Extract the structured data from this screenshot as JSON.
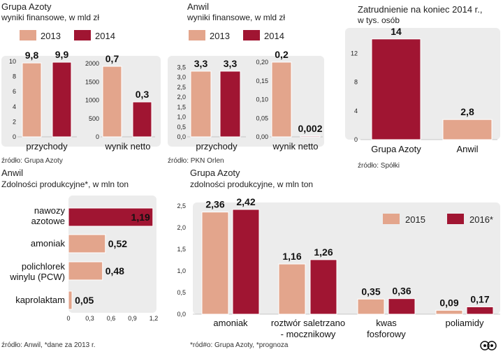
{
  "colors": {
    "c2013": "#e3a58c",
    "c2014": "#a01532",
    "panel": "#ececec"
  },
  "panel1": {
    "title": "Grupa Azoty",
    "subtitle": "wyniki finansowe, w mld zł",
    "legend": [
      "2013",
      "2014"
    ],
    "source": "źródło: Grupa Azoty"
  },
  "panel2": {
    "title": "Anwil",
    "subtitle": "wyniki finansowe, w mld zł",
    "legend": [
      "2013",
      "2014"
    ],
    "source": "źródło: PKN Orlen"
  },
  "panel3": {
    "title": "Zatrudnienie na koniec 2014 r.,",
    "subtitle": "w tys. osób",
    "source": "źródło: Spółki"
  },
  "panel4": {
    "title": "Anwil",
    "subtitle": "Zdolności produkcyjne*, w mln ton",
    "source": "źródło: Anwil, *dane za 2013 r."
  },
  "panel5": {
    "title": "Grupa Azoty",
    "subtitle": "zdolności produkcyjne, w mln ton",
    "legend": [
      "2015",
      "2016*"
    ],
    "source": "*ród#o: Grupa Azoty, *prognoza"
  },
  "logo": "PAP",
  "chart_data": [
    {
      "id": "ga_przychody",
      "type": "bar",
      "series": [
        "2013",
        "2014"
      ],
      "values": [
        9.8,
        9.9
      ],
      "labels": [
        "9,8",
        "9,9"
      ],
      "ylim": [
        0,
        10
      ],
      "yticks": [
        "0",
        "2",
        "4",
        "6",
        "8",
        "10"
      ],
      "xlabel": "przychody"
    },
    {
      "id": "ga_wynik",
      "type": "bar",
      "series": [
        "2013",
        "2014"
      ],
      "values": [
        0.7,
        0.3
      ],
      "labels": [
        "0,7",
        "0,3"
      ],
      "ylim": [
        0,
        2000
      ],
      "yticks": [
        "0",
        "500",
        "1000",
        "1500",
        "2000"
      ],
      "xlabel": "wynik netto"
    },
    {
      "id": "an_przychody",
      "type": "bar",
      "series": [
        "2013",
        "2014"
      ],
      "values": [
        3.3,
        3.3
      ],
      "labels": [
        "3,3",
        "3,3"
      ],
      "ylim": [
        0,
        3.5
      ],
      "yticks": [
        "0,0",
        "0,5",
        "1,0",
        "1,5",
        "2,0",
        "2,5",
        "3,0",
        "3,5"
      ],
      "xlabel": "przychody"
    },
    {
      "id": "an_wynik",
      "type": "bar",
      "series": [
        "2013",
        "2014"
      ],
      "values": [
        0.2,
        0.002
      ],
      "labels": [
        "0,2",
        "0,002"
      ],
      "ylim": [
        0,
        0.2
      ],
      "yticks": [
        "0,00",
        "0,05",
        "0,10",
        "0,15",
        "0,20"
      ],
      "xlabel": "wynik netto"
    },
    {
      "id": "zatrudnienie",
      "type": "bar",
      "categories": [
        "Grupa Azoty",
        "Anwil"
      ],
      "values": [
        14,
        2.8
      ],
      "labels": [
        "14",
        "2,8"
      ],
      "ylim": [
        0,
        14
      ],
      "yticks": [
        "0",
        "4",
        "8",
        "12"
      ]
    },
    {
      "id": "anwil_zdolnosci",
      "type": "bar",
      "orientation": "horizontal",
      "categories": [
        "nawozy azotowe",
        "amoniak",
        "polichlorek winylu (PCW)",
        "kaprolaktam"
      ],
      "values": [
        1.19,
        0.52,
        0.48,
        0.05
      ],
      "labels": [
        "1,19",
        "0,52",
        "0,48",
        "0,05"
      ],
      "xlim": [
        0,
        1.2
      ],
      "xticks": [
        "0",
        "0,3",
        "0,6",
        "0,9",
        "1,2"
      ]
    },
    {
      "id": "ga_zdolnosci",
      "type": "bar",
      "categories": [
        "amoniak",
        "roztwór saletrzano - mocznikowy",
        "kwas fosforowy",
        "poliamidy"
      ],
      "series": [
        {
          "name": "2015",
          "values": [
            2.36,
            1.16,
            0.35,
            0.09
          ],
          "labels": [
            "2,36",
            "1,16",
            "0,35",
            "0,09"
          ]
        },
        {
          "name": "2016*",
          "values": [
            2.42,
            1.26,
            0.36,
            0.17
          ],
          "labels": [
            "2,42",
            "1,26",
            "0,36",
            "0,17"
          ]
        }
      ],
      "ylim": [
        0,
        2.5
      ],
      "yticks": [
        "0,0",
        "0,5",
        "1,0",
        "1,5",
        "2,0",
        "2,5"
      ]
    }
  ]
}
